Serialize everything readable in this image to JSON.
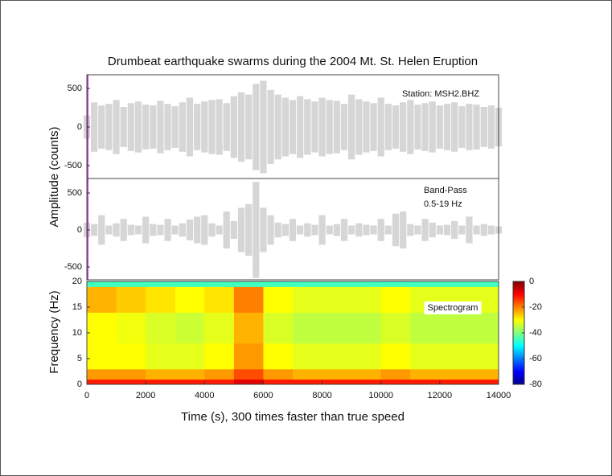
{
  "chart_data": [
    {
      "type": "area",
      "title": "Drumbeat earthquake swarms during the 2004 Mt. St. Helen Eruption",
      "ylabel": "Amplitude (counts)",
      "annotations": [
        "Station: MSH2.BHZ"
      ],
      "color": "#d6d6d6",
      "x": [
        0,
        250,
        500,
        750,
        1000,
        1250,
        1500,
        1750,
        2000,
        2250,
        2500,
        2750,
        3000,
        3250,
        3500,
        3750,
        4000,
        4250,
        4500,
        4750,
        5000,
        5250,
        5500,
        5750,
        6000,
        6250,
        6500,
        6750,
        7000,
        7250,
        7500,
        7750,
        8000,
        8250,
        8500,
        8750,
        9000,
        9250,
        9500,
        9750,
        10000,
        10250,
        10500,
        10750,
        11000,
        11250,
        11500,
        11750,
        12000,
        12250,
        12500,
        12750,
        13000,
        13250,
        13500,
        13750,
        14000
      ],
      "values": [
        150,
        320,
        280,
        300,
        350,
        260,
        310,
        330,
        290,
        280,
        340,
        300,
        270,
        320,
        380,
        300,
        330,
        350,
        360,
        310,
        400,
        450,
        420,
        560,
        600,
        480,
        420,
        380,
        350,
        400,
        360,
        330,
        380,
        350,
        340,
        300,
        420,
        360,
        330,
        310,
        380,
        300,
        280,
        320,
        350,
        290,
        310,
        330,
        280,
        300,
        320,
        270,
        300,
        290,
        260,
        280,
        250
      ],
      "xlim": [
        0,
        14000
      ],
      "ylim": [
        -667,
        677
      ],
      "yticks": [
        500,
        0,
        -500
      ]
    },
    {
      "type": "area",
      "annotations": [
        "Band-Pass",
        "0.5-19 Hz"
      ],
      "color": "#d6d6d6",
      "x": [
        0,
        250,
        500,
        750,
        1000,
        1250,
        1500,
        1750,
        2000,
        2250,
        2500,
        2750,
        3000,
        3250,
        3500,
        3750,
        4000,
        4250,
        4500,
        4750,
        5000,
        5250,
        5500,
        5750,
        6000,
        6250,
        6500,
        6750,
        7000,
        7250,
        7500,
        7750,
        8000,
        8250,
        8500,
        8750,
        9000,
        9250,
        9500,
        9750,
        10000,
        10250,
        10500,
        10750,
        11000,
        11250,
        11500,
        11750,
        12000,
        12250,
        12500,
        12750,
        13000,
        13250,
        13500,
        13750,
        14000
      ],
      "values": [
        100,
        80,
        200,
        60,
        90,
        150,
        70,
        60,
        180,
        80,
        70,
        150,
        60,
        90,
        140,
        180,
        200,
        90,
        60,
        250,
        120,
        300,
        350,
        650,
        300,
        200,
        100,
        80,
        150,
        60,
        90,
        70,
        200,
        60,
        80,
        150,
        60,
        90,
        70,
        60,
        150,
        60,
        220,
        250,
        80,
        60,
        150,
        100,
        60,
        70,
        120,
        60,
        180,
        60,
        80,
        60,
        50
      ],
      "xlim": [
        0,
        14000
      ],
      "ylim": [
        -674,
        696
      ],
      "yticks": [
        500,
        0,
        -500
      ]
    },
    {
      "type": "heatmap",
      "ylabel": "Frequency (Hz)",
      "xlabel": "Time (s), 300 times faster than true speed",
      "annotations": [
        "Spectrogram"
      ],
      "xbins": [
        0,
        1000,
        2000,
        3000,
        4000,
        5000,
        6000,
        7000,
        8000,
        9000,
        10000,
        11000,
        12000,
        13000,
        14000
      ],
      "ybins": [
        0,
        1,
        3,
        8,
        14,
        19,
        20
      ],
      "z": [
        [
          -12,
          -12,
          -12,
          -12,
          -12,
          -8,
          -12,
          -12,
          -12,
          -12,
          -12,
          -12,
          -12,
          -12
        ],
        [
          -22,
          -22,
          -24,
          -24,
          -22,
          -16,
          -22,
          -24,
          -24,
          -24,
          -22,
          -24,
          -24,
          -24
        ],
        [
          -30,
          -30,
          -32,
          -32,
          -30,
          -22,
          -30,
          -32,
          -32,
          -32,
          -30,
          -32,
          -32,
          -32
        ],
        [
          -30,
          -31,
          -33,
          -34,
          -32,
          -24,
          -33,
          -35,
          -35,
          -35,
          -33,
          -35,
          -35,
          -35
        ],
        [
          -24,
          -26,
          -28,
          -30,
          -28,
          -20,
          -30,
          -32,
          -32,
          -32,
          -30,
          -32,
          -32,
          -32
        ],
        [
          -45,
          -45,
          -45,
          -45,
          -45,
          -45,
          -45,
          -45,
          -45,
          -45,
          -45,
          -45,
          -45,
          -45
        ]
      ],
      "xlim": [
        0,
        14000
      ],
      "ylim": [
        0,
        20
      ],
      "xticks": [
        0,
        2000,
        4000,
        6000,
        8000,
        10000,
        12000,
        14000
      ],
      "yticks": [
        0,
        5,
        10,
        15,
        20
      ],
      "clim": [
        -80,
        0
      ],
      "cticks": [
        0,
        -20,
        -40,
        -60,
        -80
      ],
      "colormap": "jet"
    }
  ]
}
